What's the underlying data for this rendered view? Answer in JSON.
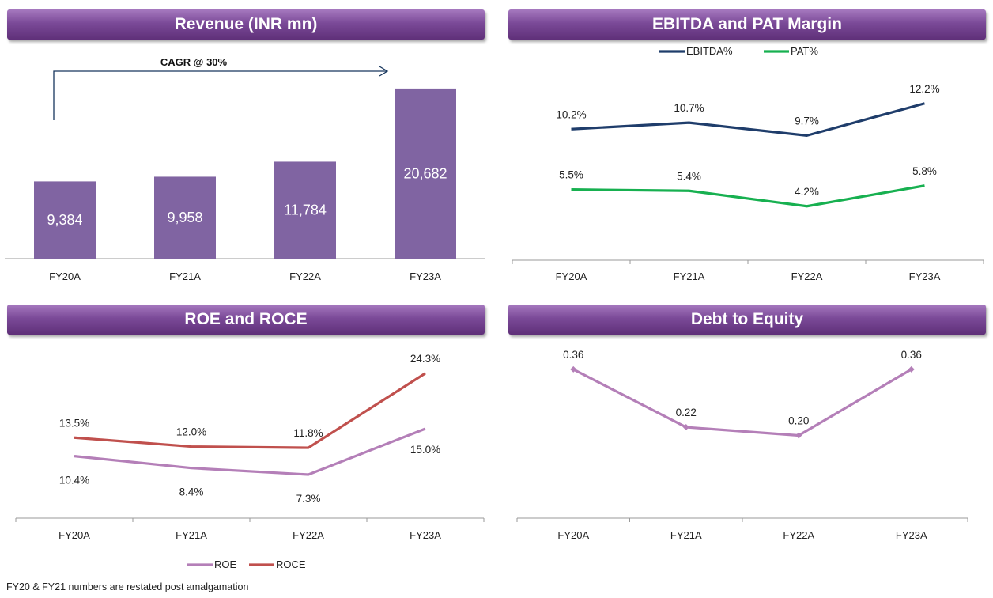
{
  "chart_data": [
    {
      "type": "bar",
      "title": "Revenue (INR mn)",
      "categories": [
        "FY20A",
        "FY21A",
        "FY22A",
        "FY23A"
      ],
      "values": [
        9384,
        9958,
        11784,
        20682
      ],
      "value_labels": [
        "9,384",
        "9,958",
        "11,784",
        "20,682"
      ],
      "ylim": [
        0,
        25000
      ],
      "annotation": "CAGR @ 30%",
      "color": "#8064a2",
      "grid": false
    },
    {
      "type": "line",
      "title": "EBITDA and PAT  Margin",
      "categories": [
        "FY20A",
        "FY21A",
        "FY22A",
        "FY23A"
      ],
      "legend_position": "top",
      "ylim": [
        0,
        16
      ],
      "series": [
        {
          "name": "EBITDA%",
          "values": [
            10.2,
            10.7,
            9.7,
            12.2
          ],
          "labels": [
            "10.2%",
            "10.7%",
            "9.7%",
            "12.2%"
          ],
          "color": "#1f3d6b"
        },
        {
          "name": "PAT%",
          "values": [
            5.5,
            5.4,
            4.2,
            5.8
          ],
          "labels": [
            "5.5%",
            "5.4%",
            "4.2%",
            "5.8%"
          ],
          "color": "#17b050"
        }
      ]
    },
    {
      "type": "line",
      "title": "ROE and ROCE",
      "categories": [
        "FY20A",
        "FY21A",
        "FY22A",
        "FY23A"
      ],
      "legend_position": "bottom",
      "ylim": [
        0,
        28
      ],
      "series": [
        {
          "name": "ROE",
          "values": [
            10.4,
            8.4,
            7.3,
            15.0
          ],
          "labels": [
            "10.4%",
            "8.4%",
            "7.3%",
            "15.0%"
          ],
          "color": "#b47fb8"
        },
        {
          "name": "ROCE",
          "values": [
            13.5,
            12.0,
            11.8,
            24.3
          ],
          "labels": [
            "13.5%",
            "12.0%",
            "11.8%",
            "24.3%"
          ],
          "color": "#c0504d"
        }
      ]
    },
    {
      "type": "line",
      "title": "Debt to Equity",
      "categories": [
        "FY20A",
        "FY21A",
        "FY22A",
        "FY23A"
      ],
      "ylim": [
        0,
        0.4
      ],
      "series": [
        {
          "name": "",
          "values": [
            0.36,
            0.22,
            0.2,
            0.36
          ],
          "labels": [
            "0.36",
            "0.22",
            "0.20",
            "0.36"
          ],
          "color": "#b47fb8"
        }
      ]
    }
  ],
  "footnote": "FY20 & FY21 numbers are restated post amalgamation"
}
